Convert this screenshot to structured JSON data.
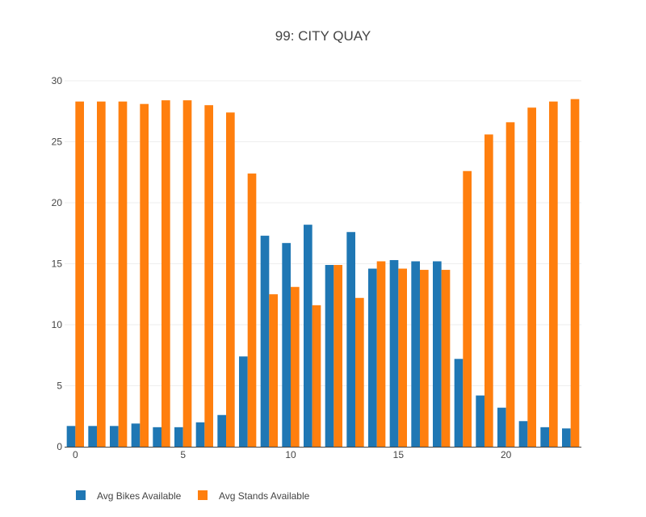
{
  "chart_data": {
    "type": "bar",
    "title": "99: CITY QUAY",
    "xlabel": "",
    "ylabel": "",
    "x": [
      0,
      1,
      2,
      3,
      4,
      5,
      6,
      7,
      8,
      9,
      10,
      11,
      12,
      13,
      14,
      15,
      16,
      17,
      18,
      19,
      20,
      21,
      22,
      23
    ],
    "xlim": [
      -0.5,
      23.5
    ],
    "ylim": [
      0,
      30
    ],
    "xticks": [
      0,
      5,
      10,
      15,
      20
    ],
    "yticks": [
      0,
      5,
      10,
      15,
      20,
      25,
      30
    ],
    "grid": true,
    "legend": "bottom-left",
    "series": [
      {
        "name": "Avg Bikes Available",
        "color": "#1f77b4",
        "values": [
          1.7,
          1.7,
          1.7,
          1.9,
          1.6,
          1.6,
          2.0,
          2.6,
          7.4,
          17.3,
          16.7,
          18.2,
          14.9,
          17.6,
          14.6,
          15.3,
          15.2,
          15.2,
          7.2,
          4.2,
          3.2,
          2.1,
          1.6,
          1.5
        ]
      },
      {
        "name": "Avg Stands Available",
        "color": "#ff7f0e",
        "values": [
          28.3,
          28.3,
          28.3,
          28.1,
          28.4,
          28.4,
          28.0,
          27.4,
          22.4,
          12.5,
          13.1,
          11.6,
          14.9,
          12.2,
          15.2,
          14.6,
          14.5,
          14.5,
          22.6,
          25.6,
          26.6,
          27.8,
          28.3,
          28.5
        ]
      }
    ]
  }
}
